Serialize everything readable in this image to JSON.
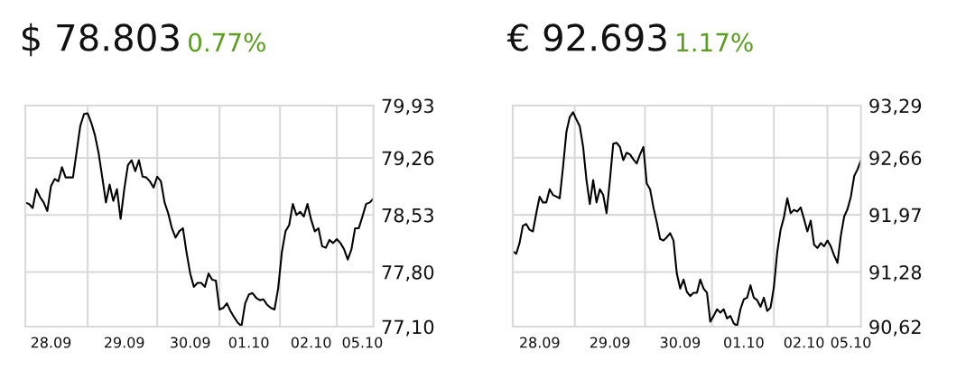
{
  "chart_data": [
    {
      "type": "line",
      "title": "$ 78.803",
      "subtitle": "0.77%",
      "grid": true,
      "tick_labels": true,
      "ylim": [
        77.1,
        79.93
      ],
      "categories": [
        null,
        null,
        null,
        null,
        null,
        null,
        null,
        "28.09",
        null,
        null,
        null,
        null,
        null,
        null,
        null,
        null,
        null,
        null,
        null,
        null,
        null,
        null,
        null,
        null,
        null,
        null,
        null,
        "29.09",
        null,
        null,
        null,
        null,
        null,
        null,
        null,
        null,
        null,
        null,
        null,
        null,
        null,
        null,
        null,
        null,
        null,
        "30.09",
        null,
        null,
        null,
        null,
        null,
        null,
        null,
        null,
        null,
        null,
        null,
        null,
        null,
        null,
        null,
        "01.10",
        null,
        null,
        null,
        null,
        null,
        null,
        null,
        null,
        null,
        null,
        null,
        null,
        null,
        null,
        null,
        null,
        "02.10",
        null,
        null,
        null,
        null,
        null,
        null,
        null,
        null,
        null,
        null,
        null,
        null,
        null,
        "05.10",
        null,
        null,
        null
      ],
      "yticks": [
        {
          "value": 77.1,
          "label": "77,10"
        },
        {
          "value": 77.8,
          "label": "77,80"
        },
        {
          "value": 78.53,
          "label": "78,53"
        },
        {
          "value": 79.26,
          "label": "79,26"
        },
        {
          "value": 79.93,
          "label": "79,93"
        }
      ],
      "series": [
        {
          "color": "#000000",
          "values": [
            78.69,
            78.67,
            78.62,
            78.86,
            78.76,
            78.69,
            78.58,
            78.9,
            78.99,
            78.96,
            79.14,
            79.01,
            79.01,
            79.01,
            79.34,
            79.67,
            79.82,
            79.83,
            79.71,
            79.55,
            79.32,
            79.01,
            78.69,
            78.92,
            78.71,
            78.86,
            78.48,
            78.86,
            79.17,
            79.23,
            79.09,
            79.23,
            79.02,
            79.01,
            78.96,
            78.88,
            79.02,
            78.96,
            78.69,
            78.55,
            78.36,
            78.24,
            78.32,
            78.36,
            78.05,
            77.78,
            77.61,
            77.66,
            77.66,
            77.61,
            77.78,
            77.7,
            77.69,
            77.32,
            77.34,
            77.4,
            77.3,
            77.22,
            77.15,
            77.11,
            77.4,
            77.51,
            77.53,
            77.47,
            77.44,
            77.45,
            77.38,
            77.34,
            77.32,
            77.59,
            78.05,
            78.32,
            78.4,
            78.67,
            78.53,
            78.57,
            78.51,
            78.67,
            78.47,
            78.32,
            78.36,
            78.13,
            78.11,
            78.21,
            78.17,
            78.22,
            78.17,
            78.09,
            77.96,
            78.09,
            78.36,
            78.36,
            78.51,
            78.67,
            78.69,
            78.74
          ]
        }
      ]
    },
    {
      "type": "line",
      "title": "€ 92.693",
      "subtitle": "1.17%",
      "grid": true,
      "ylim": [
        90.62,
        93.29
      ],
      "categories": [
        null,
        null,
        null,
        null,
        null,
        null,
        null,
        null,
        "28.09",
        null,
        null,
        null,
        null,
        null,
        null,
        null,
        null,
        null,
        null,
        null,
        null,
        null,
        null,
        null,
        null,
        null,
        null,
        null,
        null,
        "29.09",
        null,
        null,
        null,
        null,
        null,
        null,
        null,
        null,
        null,
        null,
        null,
        null,
        null,
        null,
        null,
        null,
        null,
        null,
        null,
        null,
        "30.09",
        null,
        null,
        null,
        null,
        null,
        null,
        null,
        null,
        null,
        null,
        null,
        null,
        null,
        null,
        null,
        null,
        null,
        null,
        "01.10",
        null,
        null,
        null,
        null,
        null,
        null,
        null,
        null,
        null,
        null,
        null,
        null,
        null,
        null,
        null,
        null,
        null,
        "02.10",
        null,
        null,
        null,
        null,
        null,
        null,
        null,
        null,
        null,
        null,
        null,
        null,
        null,
        "05.10",
        null,
        null,
        null
      ],
      "yticks": [
        {
          "value": 90.62,
          "label": "90,62"
        },
        {
          "value": 91.28,
          "label": "91,28"
        },
        {
          "value": 91.97,
          "label": "91,97"
        },
        {
          "value": 92.66,
          "label": "92,66"
        },
        {
          "value": 93.29,
          "label": "93,29"
        }
      ],
      "series": [
        {
          "color": "#000000",
          "values": [
            91.53,
            91.5,
            91.63,
            91.84,
            91.86,
            91.79,
            91.77,
            91.99,
            92.19,
            92.12,
            92.12,
            92.28,
            92.21,
            92.19,
            92.17,
            92.55,
            92.97,
            93.15,
            93.21,
            93.12,
            93.04,
            92.79,
            92.39,
            92.1,
            92.39,
            92.12,
            92.28,
            92.21,
            91.99,
            92.39,
            92.83,
            92.84,
            92.79,
            92.63,
            92.72,
            92.7,
            92.64,
            92.59,
            92.7,
            92.79,
            92.35,
            92.28,
            92.06,
            91.88,
            91.68,
            91.66,
            91.7,
            91.75,
            91.66,
            91.26,
            91.08,
            91.19,
            91.04,
            90.99,
            91.03,
            91.03,
            91.19,
            91.08,
            91.03,
            90.68,
            90.75,
            90.83,
            90.79,
            90.83,
            90.72,
            90.75,
            90.66,
            90.63,
            90.83,
            90.95,
            90.97,
            91.12,
            90.97,
            90.94,
            90.86,
            90.97,
            90.81,
            90.85,
            91.1,
            91.52,
            91.79,
            91.94,
            92.17,
            91.99,
            92.03,
            92.01,
            92.06,
            91.92,
            91.77,
            91.9,
            91.61,
            91.57,
            91.63,
            91.59,
            91.66,
            91.59,
            91.48,
            91.39,
            91.72,
            91.95,
            92.04,
            92.19,
            92.44,
            92.52,
            92.63
          ]
        }
      ]
    }
  ]
}
